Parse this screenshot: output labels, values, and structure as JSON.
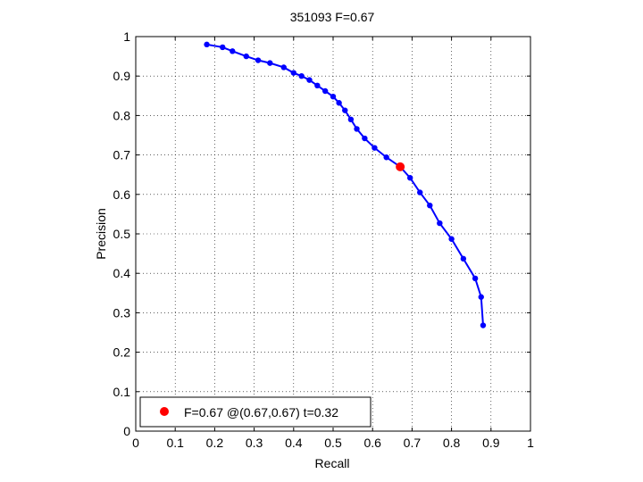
{
  "chart_data": {
    "type": "line",
    "title": "351093 F=0.67",
    "xlabel": "Recall",
    "ylabel": "Precision",
    "xlim": [
      0,
      1
    ],
    "ylim": [
      0,
      1
    ],
    "grid": true,
    "xticks": [
      "0",
      "0.1",
      "0.2",
      "0.3",
      "0.4",
      "0.5",
      "0.6",
      "0.7",
      "0.8",
      "0.9",
      "1"
    ],
    "yticks": [
      "0",
      "0.1",
      "0.2",
      "0.3",
      "0.4",
      "0.5",
      "0.6",
      "0.7",
      "0.8",
      "0.9",
      "1"
    ],
    "series": [
      {
        "color": "#0000ff",
        "x": [
          0.18,
          0.22,
          0.245,
          0.28,
          0.31,
          0.34,
          0.375,
          0.4,
          0.42,
          0.44,
          0.46,
          0.48,
          0.5,
          0.515,
          0.53,
          0.545,
          0.56,
          0.58,
          0.605,
          0.635,
          0.67,
          0.695,
          0.72,
          0.745,
          0.77,
          0.8,
          0.83,
          0.86,
          0.875,
          0.88
        ],
        "y": [
          0.98,
          0.973,
          0.963,
          0.95,
          0.94,
          0.933,
          0.922,
          0.908,
          0.9,
          0.89,
          0.876,
          0.862,
          0.848,
          0.832,
          0.813,
          0.79,
          0.766,
          0.742,
          0.718,
          0.694,
          0.67,
          0.642,
          0.605,
          0.572,
          0.527,
          0.487,
          0.437,
          0.387,
          0.34,
          0.268
        ]
      }
    ],
    "highlight": {
      "x": 0.67,
      "y": 0.67,
      "color": "#ff0000"
    },
    "legend": {
      "label": "F=0.67 @(0.67,0.67) t=0.32",
      "position": "bottom-left",
      "marker_color": "#ff0000"
    }
  }
}
